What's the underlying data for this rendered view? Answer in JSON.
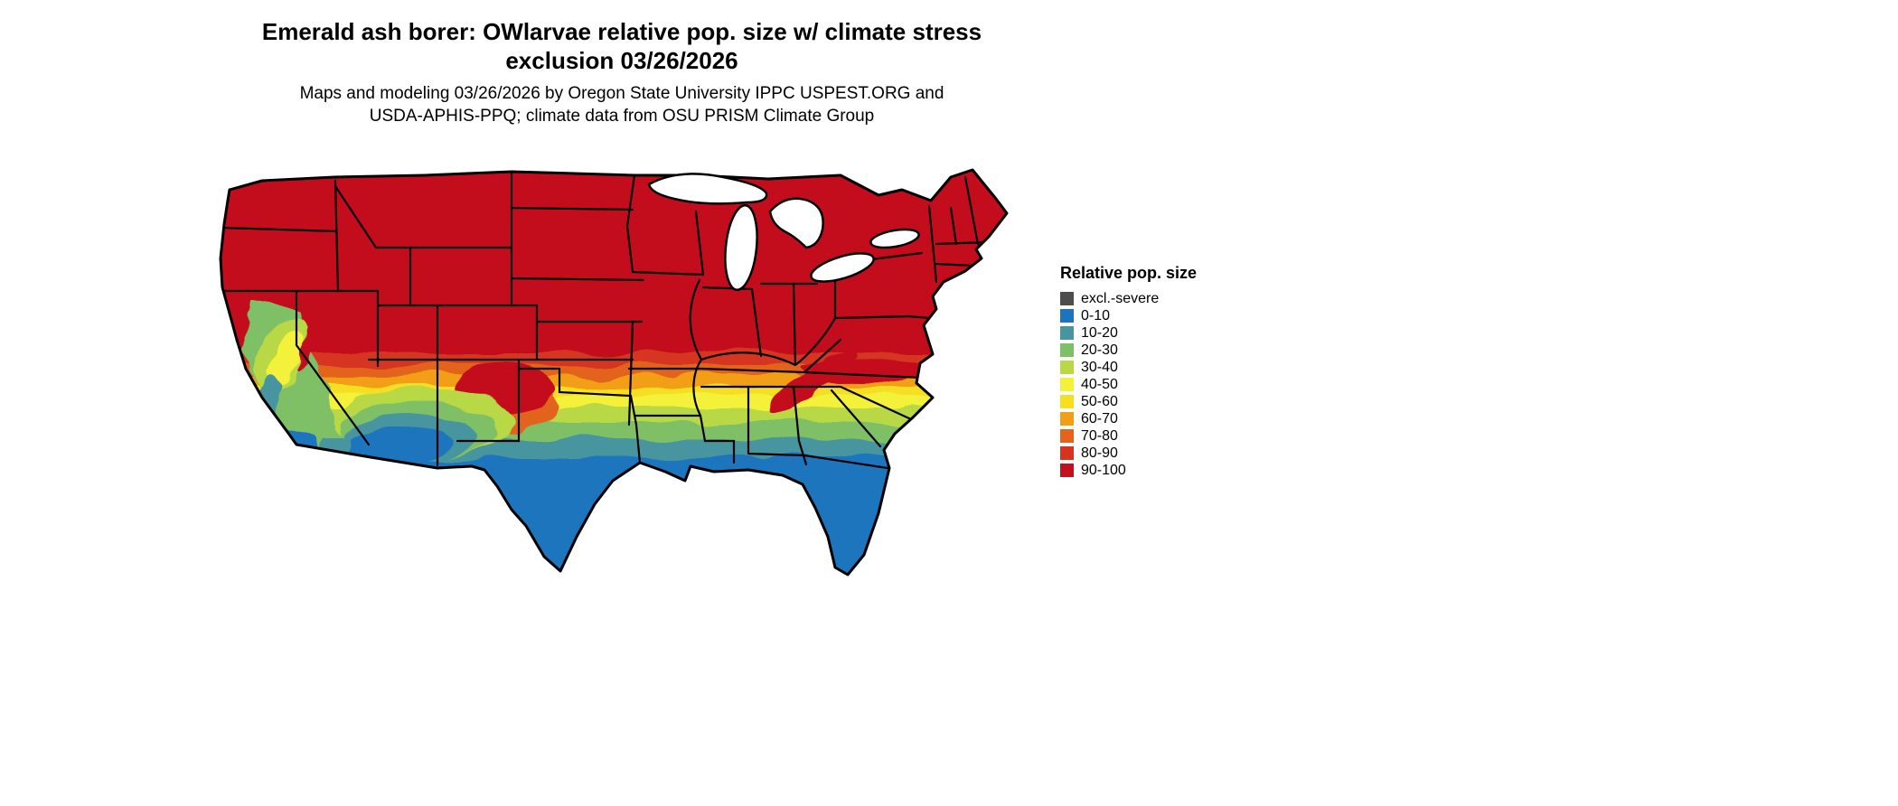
{
  "figure": {
    "title_line1": "Emerald ash borer: OWlarvae relative pop. size w/ climate stress",
    "title_line2": "exclusion 03/26/2026",
    "subtitle_line1": "Maps and modeling 03/26/2026 by Oregon State University IPPC USPEST.ORG and",
    "subtitle_line2": "USDA-APHIS-PPQ; climate data from OSU PRISM Climate Group"
  },
  "legend": {
    "title": "Relative pop. size",
    "items": [
      {
        "label": "excl.-severe",
        "color": "#4d4d4d"
      },
      {
        "label": "0-10",
        "color": "#1d74bd"
      },
      {
        "label": "10-20",
        "color": "#46959f"
      },
      {
        "label": "20-30",
        "color": "#7fc066"
      },
      {
        "label": "30-40",
        "color": "#b8d944"
      },
      {
        "label": "40-50",
        "color": "#f4f13a"
      },
      {
        "label": "50-60",
        "color": "#f6df20"
      },
      {
        "label": "60-70",
        "color": "#f29e16"
      },
      {
        "label": "70-80",
        "color": "#e4641c"
      },
      {
        "label": "80-90",
        "color": "#d63420"
      },
      {
        "label": "90-100",
        "color": "#c3101f"
      }
    ]
  }
}
